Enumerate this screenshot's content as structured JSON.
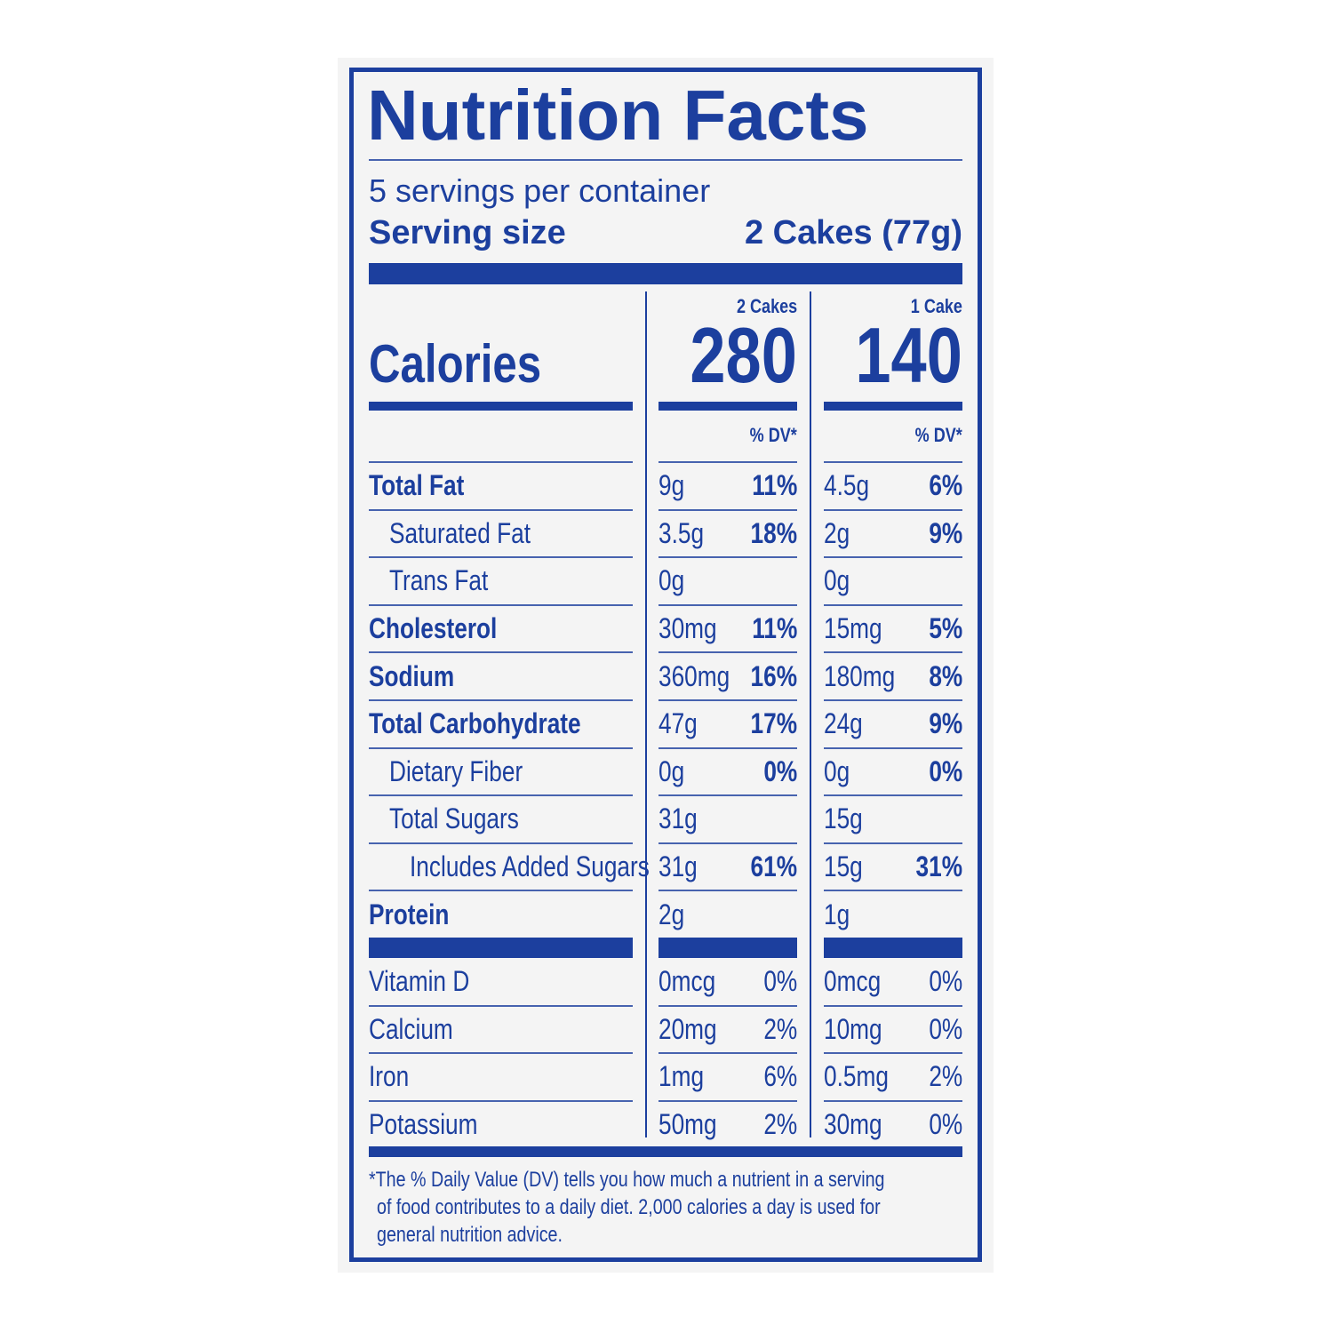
{
  "title": "Nutrition Facts",
  "servings": "5 servings per container",
  "serving_size": {
    "label": "Serving size",
    "value": "2 Cakes (77g)"
  },
  "calories_label": "Calories",
  "columns": [
    {
      "header": "2 Cakes",
      "calories": "280",
      "dv_header": "% DV*"
    },
    {
      "header": "1 Cake",
      "calories": "140",
      "dv_header": "% DV*"
    }
  ],
  "nutrients": [
    {
      "name": "Total Fat",
      "values": [
        {
          "amount": "9g",
          "dv": "11%"
        },
        {
          "amount": "4.5g",
          "dv": "6%"
        }
      ]
    },
    {
      "name": "Saturated Fat",
      "values": [
        {
          "amount": "3.5g",
          "dv": "18%"
        },
        {
          "amount": "2g",
          "dv": "9%"
        }
      ]
    },
    {
      "name": "Trans Fat",
      "values": [
        {
          "amount": "0g"
        },
        {
          "amount": "0g"
        }
      ]
    },
    {
      "name": "Cholesterol",
      "values": [
        {
          "amount": "30mg",
          "dv": "11%"
        },
        {
          "amount": "15mg",
          "dv": "5%"
        }
      ]
    },
    {
      "name": "Sodium",
      "values": [
        {
          "amount": "360mg",
          "dv": "16%"
        },
        {
          "amount": "180mg",
          "dv": "8%"
        }
      ]
    },
    {
      "name": "Total Carbohydrate",
      "values": [
        {
          "amount": "47g",
          "dv": "17%"
        },
        {
          "amount": "24g",
          "dv": "9%"
        }
      ]
    },
    {
      "name": "Dietary Fiber",
      "values": [
        {
          "amount": "0g",
          "dv": "0%"
        },
        {
          "amount": "0g",
          "dv": "0%"
        }
      ]
    },
    {
      "name": "Total Sugars",
      "values": [
        {
          "amount": "31g"
        },
        {
          "amount": "15g"
        }
      ]
    },
    {
      "name": "Includes Added Sugars",
      "values": [
        {
          "amount": "31g",
          "dv": "61%"
        },
        {
          "amount": "15g",
          "dv": "31%"
        }
      ]
    },
    {
      "name": "Protein",
      "values": [
        {
          "amount": "2g"
        },
        {
          "amount": "1g"
        }
      ]
    }
  ],
  "vitamins": [
    {
      "name": "Vitamin D",
      "values": [
        {
          "amount": "0mcg",
          "dv": "0%"
        },
        {
          "amount": "0mcg",
          "dv": "0%"
        }
      ]
    },
    {
      "name": "Calcium",
      "values": [
        {
          "amount": "20mg",
          "dv": "2%"
        },
        {
          "amount": "10mg",
          "dv": "0%"
        }
      ]
    },
    {
      "name": "Iron",
      "values": [
        {
          "amount": "1mg",
          "dv": "6%"
        },
        {
          "amount": "0.5mg",
          "dv": "2%"
        }
      ]
    },
    {
      "name": "Potassium",
      "values": [
        {
          "amount": "50mg",
          "dv": "2%"
        },
        {
          "amount": "30mg",
          "dv": "0%"
        }
      ]
    }
  ],
  "footnote": [
    "*The % Daily Value (DV) tells you how much a nutrient in a serving",
    "of food contributes to a daily diet. 2,000 calories a day is used for",
    "general nutrition advice."
  ]
}
